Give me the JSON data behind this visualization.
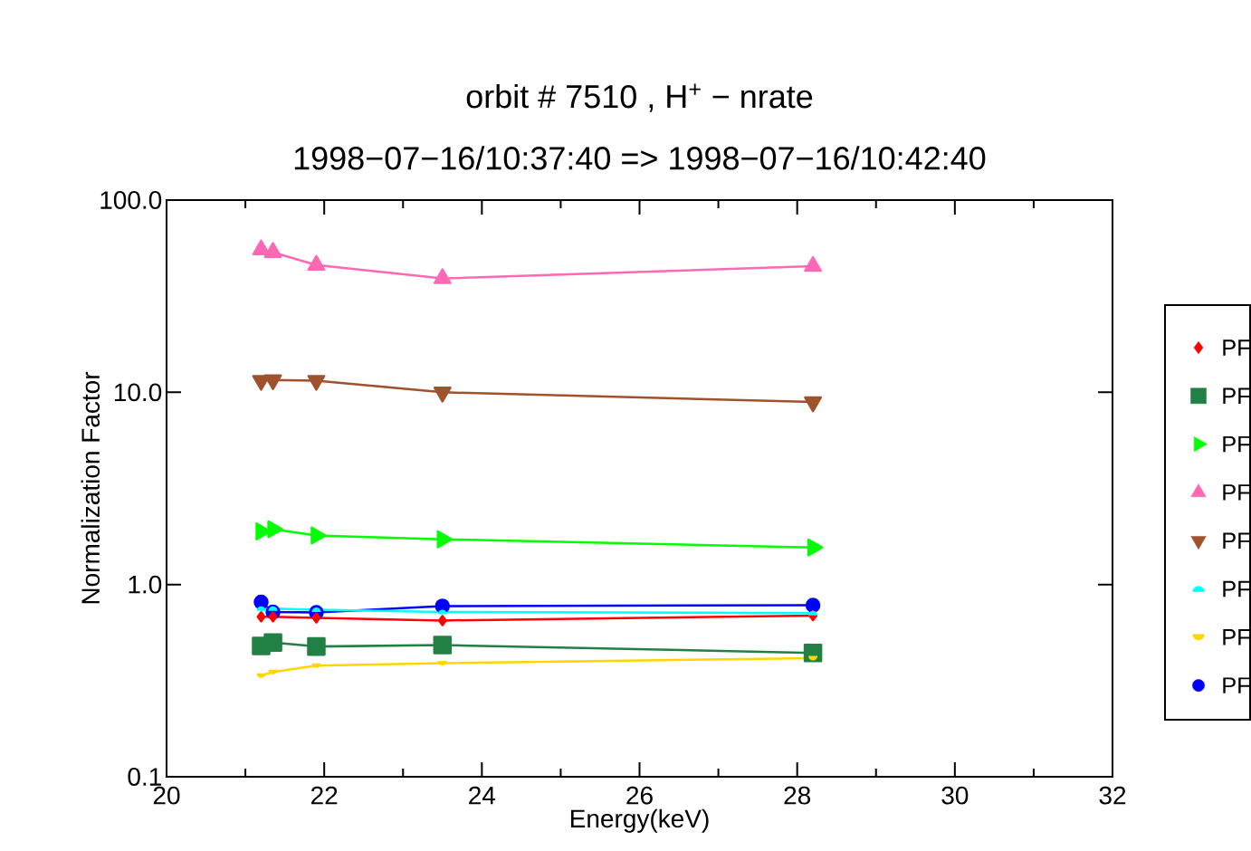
{
  "chart_data": {
    "type": "line",
    "title": "orbit # 7510 , H$^{+}$  −  nrate",
    "subtitle": "1998−07−16/10:37:40  =>  1998−07−16/10:42:40",
    "xlabel": "Energy(keV)",
    "ylabel": "Normalization Factor",
    "x": [
      21.2,
      21.35,
      21.9,
      23.5,
      28.2
    ],
    "xlim": [
      20,
      32
    ],
    "xticks": [
      20,
      22,
      24,
      26,
      28,
      30,
      32
    ],
    "ylim": [
      0.1,
      100
    ],
    "yticks": [
      {
        "value": 0.1,
        "label": "0.1"
      },
      {
        "value": 1,
        "label": "1.0"
      },
      {
        "value": 10,
        "label": "10.0"
      },
      {
        "value": 100,
        "label": "100.0"
      }
    ],
    "log": "y",
    "grid": false,
    "legend": "right",
    "line_style": "solid",
    "series": [
      {
        "name": "PF",
        "color": "#ff0000",
        "marker": "diamond",
        "values": [
          0.68,
          0.68,
          0.67,
          0.65,
          0.69
        ]
      },
      {
        "name": "PF",
        "color": "#238045",
        "marker": "square",
        "values": [
          0.479,
          0.499,
          0.476,
          0.484,
          0.441
        ]
      },
      {
        "name": "PF",
        "color": "#00ff00",
        "marker": "triangle-right",
        "values": [
          1.89,
          1.94,
          1.8,
          1.72,
          1.56
        ]
      },
      {
        "name": "PF",
        "color": "#ff69b4",
        "marker": "triangle",
        "values": [
          55.2,
          53.5,
          45.9,
          39.1,
          45.3
        ]
      },
      {
        "name": "PF",
        "color": "#a0522d",
        "marker": "triangle-down",
        "values": [
          11.5,
          11.6,
          11.5,
          10.0,
          8.9
        ]
      },
      {
        "name": "PF",
        "color": "#00ffff",
        "marker": "halfcircle-top",
        "values": [
          0.75,
          0.75,
          0.74,
          0.72,
          0.71
        ]
      },
      {
        "name": "PF",
        "color": "#ffd700",
        "marker": "halfcircle-bottom",
        "values": [
          0.336,
          0.351,
          0.379,
          0.39,
          0.414
        ]
      },
      {
        "name": "PF",
        "color": "#0000ff",
        "marker": "circle",
        "values": [
          0.81,
          0.719,
          0.716,
          0.773,
          0.78
        ]
      }
    ]
  }
}
